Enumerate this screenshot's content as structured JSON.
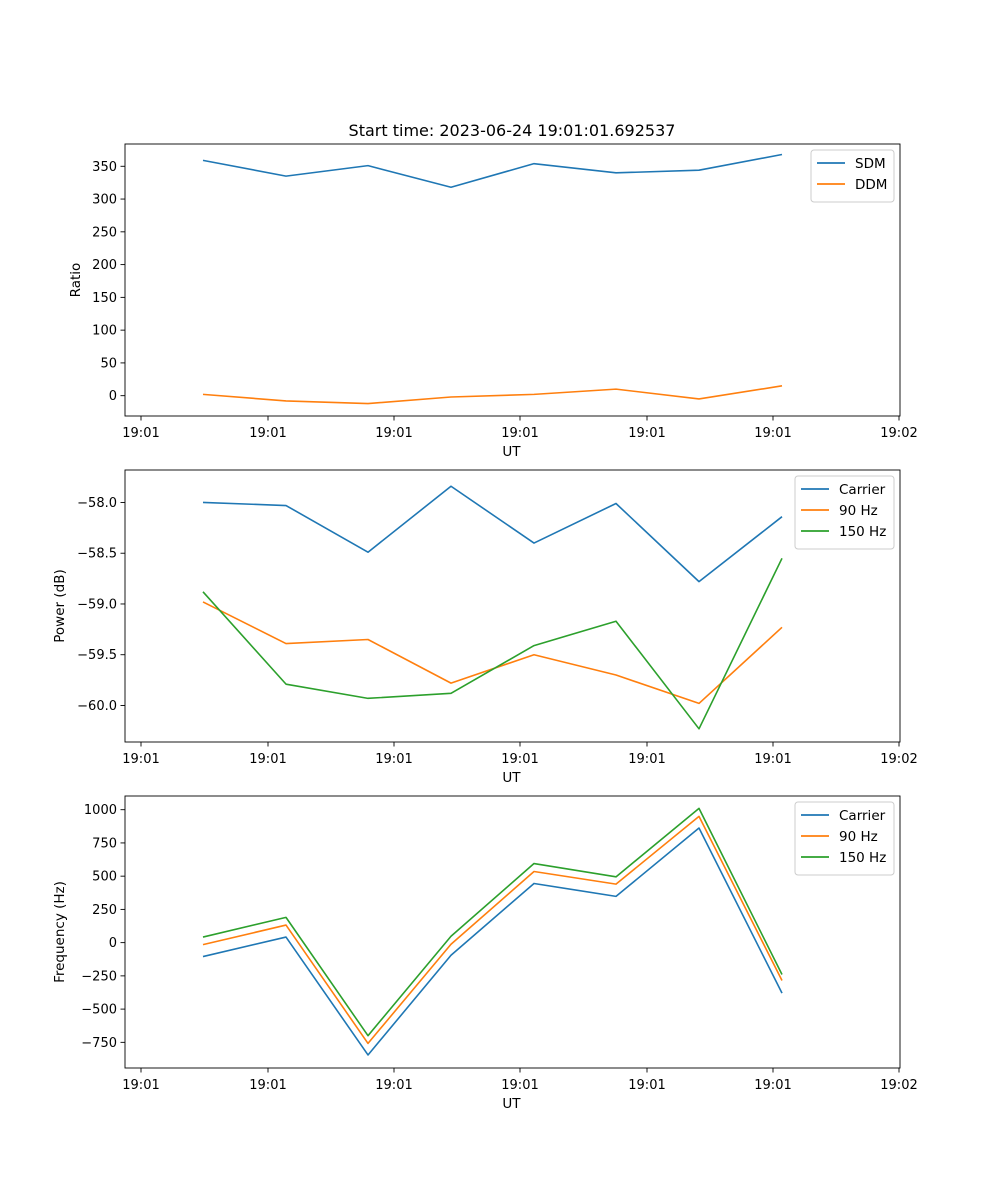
{
  "title": "Start time: 2023-06-24 19:01:01.692537",
  "colors": {
    "blue": "#1f77b4",
    "orange": "#ff7f0e",
    "green": "#2ca02c"
  },
  "chart_data": [
    {
      "type": "line",
      "title": "Start time: 2023-06-24 19:01:01.692537",
      "xlabel": "UT",
      "ylabel": "Ratio",
      "x_ticks": [
        "19:01",
        "19:01",
        "19:01",
        "19:01",
        "19:01",
        "19:01",
        "19:02"
      ],
      "y_ticks": [
        "0",
        "50",
        "100",
        "150",
        "200",
        "250",
        "300",
        "350"
      ],
      "ylim": [
        -31,
        384
      ],
      "legend_position": "upper right",
      "series": [
        {
          "name": "SDM",
          "color": "#1f77b4",
          "values": [
            359,
            335,
            351,
            318,
            354,
            340,
            344,
            368
          ]
        },
        {
          "name": "DDM",
          "color": "#ff7f0e",
          "values": [
            2,
            -8,
            -12,
            -2,
            2,
            10,
            -5,
            15
          ]
        }
      ]
    },
    {
      "type": "line",
      "title": "",
      "xlabel": "UT",
      "ylabel": "Power (dB)",
      "x_ticks": [
        "19:01",
        "19:01",
        "19:01",
        "19:01",
        "19:01",
        "19:01",
        "19:02"
      ],
      "y_ticks": [
        "−60.0",
        "−59.5",
        "−59.0",
        "−58.5",
        "−58.0"
      ],
      "ylim": [
        -60.36,
        -57.68
      ],
      "legend_position": "upper right",
      "series": [
        {
          "name": "Carrier",
          "color": "#1f77b4",
          "values": [
            -58.0,
            -58.03,
            -58.49,
            -57.84,
            -58.4,
            -58.01,
            -58.78,
            -58.14
          ]
        },
        {
          "name": "90 Hz",
          "color": "#ff7f0e",
          "values": [
            -58.98,
            -59.39,
            -59.35,
            -59.78,
            -59.5,
            -59.7,
            -59.98,
            -59.23
          ]
        },
        {
          "name": "150 Hz",
          "color": "#2ca02c",
          "values": [
            -58.88,
            -59.79,
            -59.93,
            -59.88,
            -59.41,
            -59.17,
            -60.23,
            -58.55
          ]
        }
      ]
    },
    {
      "type": "line",
      "title": "",
      "xlabel": "UT",
      "ylabel": "Frequency (Hz)",
      "x_ticks": [
        "19:01",
        "19:01",
        "19:01",
        "19:01",
        "19:01",
        "19:01",
        "19:02"
      ],
      "y_ticks": [
        "−750",
        "−500",
        "−250",
        "0",
        "250",
        "500",
        "750",
        "1000"
      ],
      "ylim": [
        -943,
        1103
      ],
      "legend_position": "upper right",
      "series": [
        {
          "name": "Carrier",
          "color": "#1f77b4",
          "values": [
            -105,
            42,
            -845,
            -95,
            445,
            348,
            862,
            -380
          ]
        },
        {
          "name": "90 Hz",
          "color": "#ff7f0e",
          "values": [
            -15,
            132,
            -758,
            -12,
            535,
            440,
            950,
            -285
          ]
        },
        {
          "name": "150 Hz",
          "color": "#2ca02c",
          "values": [
            42,
            190,
            -700,
            48,
            595,
            495,
            1010,
            -240
          ]
        }
      ]
    }
  ]
}
